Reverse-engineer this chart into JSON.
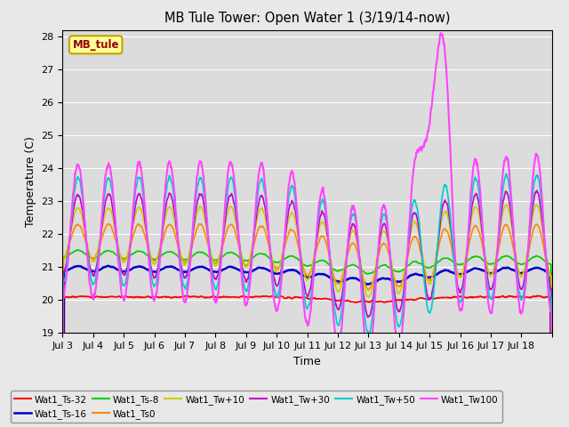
{
  "title": "MB Tule Tower: Open Water 1 (3/19/14-now)",
  "xlabel": "Time",
  "ylabel": "Temperature (C)",
  "ylim": [
    19.0,
    28.2
  ],
  "num_days": 16,
  "pts_per_day": 144,
  "x_tick_labels": [
    "Jul 3",
    "Jul 4",
    "Jul 5",
    "Jul 6",
    "Jul 7",
    "Jul 8",
    "Jul 9",
    "Jul 10",
    "Jul 11",
    "Jul 12",
    "Jul 13",
    "Jul 14",
    "Jul 15",
    "Jul 16",
    "Jul 17",
    "Jul 18"
  ],
  "yticks": [
    19.0,
    20.0,
    21.0,
    22.0,
    23.0,
    24.0,
    25.0,
    26.0,
    27.0,
    28.0
  ],
  "background_color": "#e8e8e8",
  "plot_bg_color": "#dcdcdc",
  "grid_color": "#ffffff",
  "legend_label": "MB_tule",
  "legend_bg": "#ffff99",
  "legend_border": "#c8a000",
  "legend_text_color": "#990000",
  "series_colors": {
    "Wat1_Ts-32": "#ff0000",
    "Wat1_Ts-16": "#0000cc",
    "Wat1_Ts-8": "#00cc00",
    "Wat1_Ts0": "#ff8800",
    "Wat1_Tw+10": "#cccc00",
    "Wat1_Tw+30": "#cc00cc",
    "Wat1_Tw+50": "#00cccc",
    "Wat1_Tw100": "#ff44ff"
  }
}
